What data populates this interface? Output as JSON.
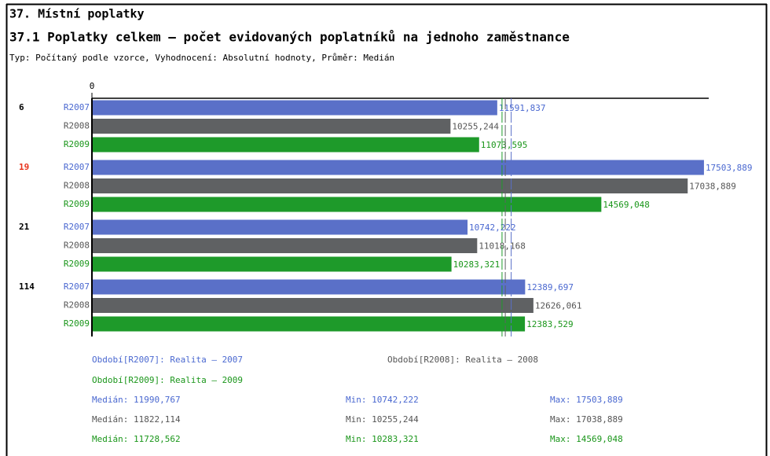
{
  "chart_data": {
    "type": "hbar",
    "title": "37. Místní poplatky",
    "subtitle": "37.1 Poplatky celkem – počet evidovaných poplatníků na jednoho zaměstnance",
    "note": "Typ: Počítaný podle vzorce, Vyhodnocení: Absolutní hodnoty, Průměr: Medián",
    "categories": [
      "6",
      "19",
      "21",
      "114"
    ],
    "category_colors": [
      "#000000",
      "#e8331c",
      "#000000",
      "#000000"
    ],
    "xlim": [
      0,
      17640
    ],
    "xticks": [
      0
    ],
    "series": [
      {
        "name": "R2007",
        "color": "#5a70c8",
        "text_color": "#4a68d0",
        "legend": "Období[R2007]: Realita – 2007",
        "values": [
          11591.837,
          17503.889,
          10742.222,
          12389.697
        ],
        "value_labels": [
          "11591,837",
          "17503,889",
          "10742,222",
          "12389,697"
        ],
        "median": {
          "value": 11990.767,
          "label": "Medián: 11990,767"
        },
        "min": "Min: 10742,222",
        "max": "Max: 17503,889"
      },
      {
        "name": "R2008",
        "color": "#5f6163",
        "text_color": "#555555",
        "legend": "Období[R2008]: Realita – 2008",
        "values": [
          10255.244,
          17038.889,
          11018.168,
          12626.061
        ],
        "value_labels": [
          "10255,244",
          "17038,889",
          "11018,168",
          "12626,061"
        ],
        "median": {
          "value": 11822.114,
          "label": "Medián: 11822,114"
        },
        "min": "Min: 10255,244",
        "max": "Max: 17038,889"
      },
      {
        "name": "R2009",
        "color": "#1e9a2a",
        "text_color": "#1a961a",
        "legend": "Období[R2009]: Realita – 2009",
        "values": [
          11073.595,
          14569.048,
          10283.321,
          12383.529
        ],
        "value_labels": [
          "11073,595",
          "14569,048",
          "10283,321",
          "12383,529"
        ],
        "median": {
          "value": 11728.562,
          "label": "Medián: 11728,562"
        },
        "min": "Min: 10283,321",
        "max": "Max: 14569,048"
      }
    ]
  }
}
